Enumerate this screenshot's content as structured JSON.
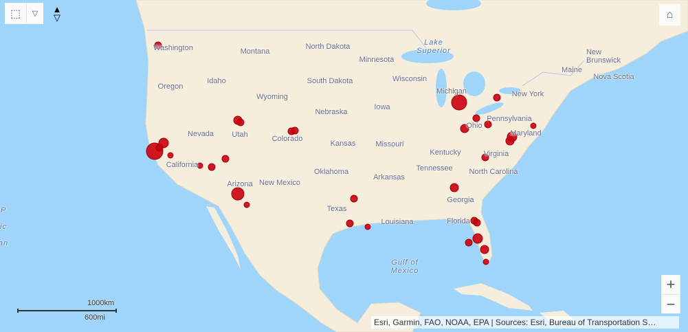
{
  "toolbar": {
    "select_icon": "lasso-select-icon",
    "dropdown_icon": "chevron-down-icon",
    "compass_icon": "compass-icon",
    "home_icon": "home-icon"
  },
  "zoom": {
    "in": "+",
    "out": "−"
  },
  "marker_color": "#cc0010",
  "labels": {
    "washington": "Washington",
    "montana": "Montana",
    "north_dakota": "North Dakota",
    "minnesota": "Minnesota",
    "lake_superior": "Lake\nSuperior",
    "oregon": "Oregon",
    "idaho": "Idaho",
    "wyoming": "Wyoming",
    "south_dakota": "South Dakota",
    "wisconsin": "Wisconsin",
    "michigan": "Michigan",
    "new_york": "New York",
    "maine": "Maine",
    "new_brunswick": "New\nBrunswick",
    "nova_scotia": "Nova Scotia",
    "nebraska": "Nebraska",
    "iowa": "Iowa",
    "nevada": "Nevada",
    "utah": "Utah",
    "colorado": "Colorado",
    "kansas": "Kansas",
    "missouri": "Missouri",
    "ohio": "Ohio",
    "pennsylvania": "Pennsylvania",
    "maryland": "Maryland",
    "california": "California",
    "kentucky": "Kentucky",
    "virginia": "Virginia",
    "tennessee": "Tennessee",
    "north_carolina": "North Carolina",
    "oklahoma": "Oklahoma",
    "arkansas": "Arkansas",
    "arizona": "Arizona",
    "new_mexico": "New Mexico",
    "georgia": "Georgia",
    "texas": "Texas",
    "louisiana": "Louisiana",
    "florida": "Florida",
    "gulf": "Gulf of\nMexico",
    "pacific": "P\n\nic\n\nan"
  },
  "scale": {
    "km": "1000km",
    "mi": "600mi"
  },
  "attribution": "Esri, Garmin, FAO, NOAA, EPA | Sources: Esri, Bureau of Transportation S…"
}
